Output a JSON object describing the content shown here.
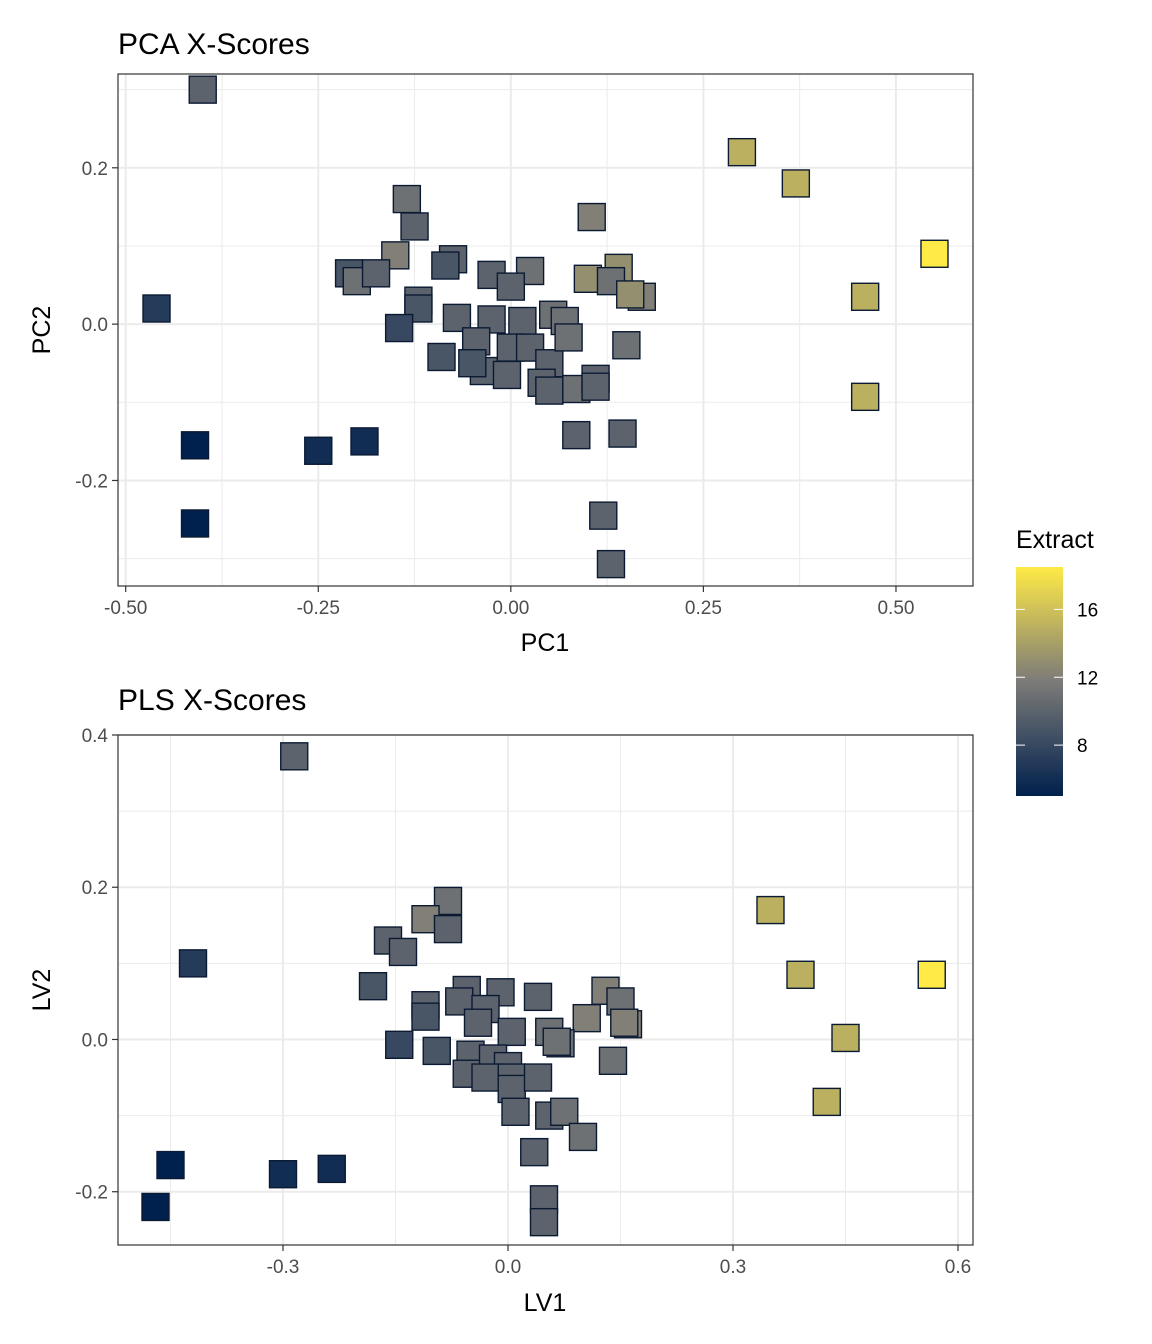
{
  "colors": {
    "low": "#00204d",
    "mid": "#7c7b78",
    "high": "#ffea46",
    "grid": "#ebebeb",
    "panel_border": "#333333"
  },
  "legend": {
    "title": "Extract",
    "ticks": [
      8,
      12,
      16
    ],
    "range": [
      5,
      18.5
    ],
    "placement": "right"
  },
  "chart_data": [
    {
      "type": "scatter",
      "title": "PCA X-Scores",
      "xlabel": "PC1",
      "ylabel": "PC2",
      "xlim": [
        -0.51,
        0.6
      ],
      "ylim": [
        -0.335,
        0.32
      ],
      "xticks": [
        -0.5,
        -0.25,
        0.0,
        0.25,
        0.5
      ],
      "xtick_labels": [
        "-0.50",
        "-0.25",
        "0.00",
        "0.25",
        "0.50"
      ],
      "yticks": [
        -0.2,
        0.0,
        0.2
      ],
      "ytick_labels": [
        "-0.2",
        "0.0",
        "0.2"
      ],
      "points": [
        {
          "x": -0.4,
          "y": 0.3,
          "extract": 10
        },
        {
          "x": 0.3,
          "y": 0.22,
          "extract": 15
        },
        {
          "x": 0.37,
          "y": 0.18,
          "extract": 15
        },
        {
          "x": 0.55,
          "y": 0.09,
          "extract": 18.5
        },
        {
          "x": 0.46,
          "y": 0.035,
          "extract": 15
        },
        {
          "x": 0.46,
          "y": -0.093,
          "extract": 15
        },
        {
          "x": -0.46,
          "y": 0.02,
          "extract": 7
        },
        {
          "x": -0.41,
          "y": -0.155,
          "extract": 5
        },
        {
          "x": -0.41,
          "y": -0.255,
          "extract": 5
        },
        {
          "x": -0.25,
          "y": -0.162,
          "extract": 6
        },
        {
          "x": -0.19,
          "y": -0.15,
          "extract": 6
        },
        {
          "x": -0.135,
          "y": 0.16,
          "extract": 11
        },
        {
          "x": -0.125,
          "y": 0.125,
          "extract": 10
        },
        {
          "x": -0.15,
          "y": 0.088,
          "extract": 12
        },
        {
          "x": -0.21,
          "y": 0.065,
          "extract": 9
        },
        {
          "x": -0.2,
          "y": 0.055,
          "extract": 11
        },
        {
          "x": -0.175,
          "y": 0.065,
          "extract": 10
        },
        {
          "x": -0.12,
          "y": 0.03,
          "extract": 10
        },
        {
          "x": -0.12,
          "y": 0.02,
          "extract": 9
        },
        {
          "x": -0.145,
          "y": -0.005,
          "extract": 8
        },
        {
          "x": -0.075,
          "y": 0.083,
          "extract": 10
        },
        {
          "x": -0.085,
          "y": 0.075,
          "extract": 9
        },
        {
          "x": -0.025,
          "y": 0.063,
          "extract": 10
        },
        {
          "x": 0.025,
          "y": 0.068,
          "extract": 11
        },
        {
          "x": 0.0,
          "y": 0.048,
          "extract": 10
        },
        {
          "x": 0.105,
          "y": 0.137,
          "extract": 12
        },
        {
          "x": 0.1,
          "y": 0.058,
          "extract": 13
        },
        {
          "x": 0.14,
          "y": 0.072,
          "extract": 13
        },
        {
          "x": 0.13,
          "y": 0.055,
          "extract": 11
        },
        {
          "x": 0.17,
          "y": 0.035,
          "extract": 12
        },
        {
          "x": 0.155,
          "y": 0.038,
          "extract": 13
        },
        {
          "x": -0.07,
          "y": 0.008,
          "extract": 10
        },
        {
          "x": -0.025,
          "y": 0.006,
          "extract": 10
        },
        {
          "x": 0.015,
          "y": 0.004,
          "extract": 10
        },
        {
          "x": 0.055,
          "y": 0.012,
          "extract": 11
        },
        {
          "x": 0.07,
          "y": 0.004,
          "extract": 11
        },
        {
          "x": -0.09,
          "y": -0.042,
          "extract": 9
        },
        {
          "x": -0.045,
          "y": -0.022,
          "extract": 10
        },
        {
          "x": -0.035,
          "y": -0.06,
          "extract": 10
        },
        {
          "x": 0.0,
          "y": -0.03,
          "extract": 10
        },
        {
          "x": 0.025,
          "y": -0.03,
          "extract": 10
        },
        {
          "x": 0.05,
          "y": -0.05,
          "extract": 10
        },
        {
          "x": -0.05,
          "y": -0.05,
          "extract": 9
        },
        {
          "x": -0.005,
          "y": -0.065,
          "extract": 10
        },
        {
          "x": 0.075,
          "y": -0.017,
          "extract": 11
        },
        {
          "x": 0.15,
          "y": -0.027,
          "extract": 11
        },
        {
          "x": 0.04,
          "y": -0.075,
          "extract": 10
        },
        {
          "x": 0.05,
          "y": -0.085,
          "extract": 10
        },
        {
          "x": 0.085,
          "y": -0.083,
          "extract": 11
        },
        {
          "x": 0.11,
          "y": -0.07,
          "extract": 10
        },
        {
          "x": 0.11,
          "y": -0.08,
          "extract": 10
        },
        {
          "x": 0.085,
          "y": -0.142,
          "extract": 10
        },
        {
          "x": 0.145,
          "y": -0.14,
          "extract": 10
        },
        {
          "x": 0.12,
          "y": -0.245,
          "extract": 10
        },
        {
          "x": 0.13,
          "y": -0.307,
          "extract": 10
        }
      ]
    },
    {
      "type": "scatter",
      "title": "PLS X-Scores",
      "xlabel": "LV1",
      "ylabel": "LV2",
      "xlim": [
        -0.52,
        0.62
      ],
      "ylim": [
        -0.27,
        0.4
      ],
      "xticks": [
        -0.3,
        0.0,
        0.3,
        0.6
      ],
      "xtick_labels": [
        "-0.3",
        "0.0",
        "0.3",
        "0.6"
      ],
      "yticks": [
        -0.2,
        0.0,
        0.2,
        0.4
      ],
      "ytick_labels": [
        "-0.2",
        "0.0",
        "0.2",
        "0.4"
      ],
      "points": [
        {
          "x": -0.285,
          "y": 0.372,
          "extract": 10
        },
        {
          "x": 0.35,
          "y": 0.17,
          "extract": 15
        },
        {
          "x": 0.39,
          "y": 0.085,
          "extract": 15
        },
        {
          "x": 0.565,
          "y": 0.085,
          "extract": 18.5
        },
        {
          "x": 0.45,
          "y": 0.002,
          "extract": 15
        },
        {
          "x": 0.425,
          "y": -0.082,
          "extract": 15
        },
        {
          "x": -0.42,
          "y": 0.1,
          "extract": 7
        },
        {
          "x": -0.45,
          "y": -0.165,
          "extract": 5
        },
        {
          "x": -0.47,
          "y": -0.22,
          "extract": 5
        },
        {
          "x": -0.3,
          "y": -0.177,
          "extract": 6
        },
        {
          "x": -0.235,
          "y": -0.17,
          "extract": 6
        },
        {
          "x": -0.08,
          "y": 0.182,
          "extract": 11
        },
        {
          "x": -0.11,
          "y": 0.158,
          "extract": 12
        },
        {
          "x": -0.08,
          "y": 0.145,
          "extract": 10
        },
        {
          "x": -0.16,
          "y": 0.13,
          "extract": 10
        },
        {
          "x": -0.14,
          "y": 0.115,
          "extract": 10
        },
        {
          "x": -0.18,
          "y": 0.07,
          "extract": 9
        },
        {
          "x": -0.145,
          "y": -0.007,
          "extract": 8
        },
        {
          "x": -0.11,
          "y": 0.045,
          "extract": 10
        },
        {
          "x": -0.11,
          "y": 0.03,
          "extract": 9
        },
        {
          "x": -0.055,
          "y": 0.065,
          "extract": 10
        },
        {
          "x": -0.065,
          "y": 0.05,
          "extract": 10
        },
        {
          "x": -0.01,
          "y": 0.062,
          "extract": 10
        },
        {
          "x": 0.04,
          "y": 0.056,
          "extract": 10
        },
        {
          "x": 0.13,
          "y": 0.064,
          "extract": 12
        },
        {
          "x": 0.15,
          "y": 0.05,
          "extract": 11
        },
        {
          "x": 0.105,
          "y": 0.028,
          "extract": 12
        },
        {
          "x": 0.16,
          "y": 0.02,
          "extract": 12
        },
        {
          "x": 0.155,
          "y": 0.022,
          "extract": 12
        },
        {
          "x": -0.03,
          "y": 0.04,
          "extract": 10
        },
        {
          "x": -0.04,
          "y": 0.022,
          "extract": 10
        },
        {
          "x": 0.005,
          "y": 0.01,
          "extract": 10
        },
        {
          "x": 0.055,
          "y": 0.01,
          "extract": 11
        },
        {
          "x": 0.07,
          "y": -0.005,
          "extract": 11
        },
        {
          "x": 0.065,
          "y": -0.003,
          "extract": 11
        },
        {
          "x": -0.095,
          "y": -0.015,
          "extract": 9
        },
        {
          "x": -0.05,
          "y": -0.02,
          "extract": 10
        },
        {
          "x": -0.055,
          "y": -0.045,
          "extract": 10
        },
        {
          "x": -0.02,
          "y": -0.025,
          "extract": 10
        },
        {
          "x": 0.0,
          "y": -0.035,
          "extract": 10
        },
        {
          "x": -0.03,
          "y": -0.05,
          "extract": 10
        },
        {
          "x": 0.005,
          "y": -0.05,
          "extract": 10
        },
        {
          "x": 0.005,
          "y": -0.065,
          "extract": 10
        },
        {
          "x": 0.04,
          "y": -0.05,
          "extract": 10
        },
        {
          "x": 0.14,
          "y": -0.028,
          "extract": 11
        },
        {
          "x": 0.01,
          "y": -0.095,
          "extract": 10
        },
        {
          "x": 0.055,
          "y": -0.1,
          "extract": 10
        },
        {
          "x": 0.075,
          "y": -0.095,
          "extract": 11
        },
        {
          "x": 0.1,
          "y": -0.128,
          "extract": 11
        },
        {
          "x": 0.035,
          "y": -0.148,
          "extract": 10
        },
        {
          "x": 0.048,
          "y": -0.21,
          "extract": 10
        },
        {
          "x": 0.048,
          "y": -0.24,
          "extract": 10
        }
      ]
    }
  ]
}
